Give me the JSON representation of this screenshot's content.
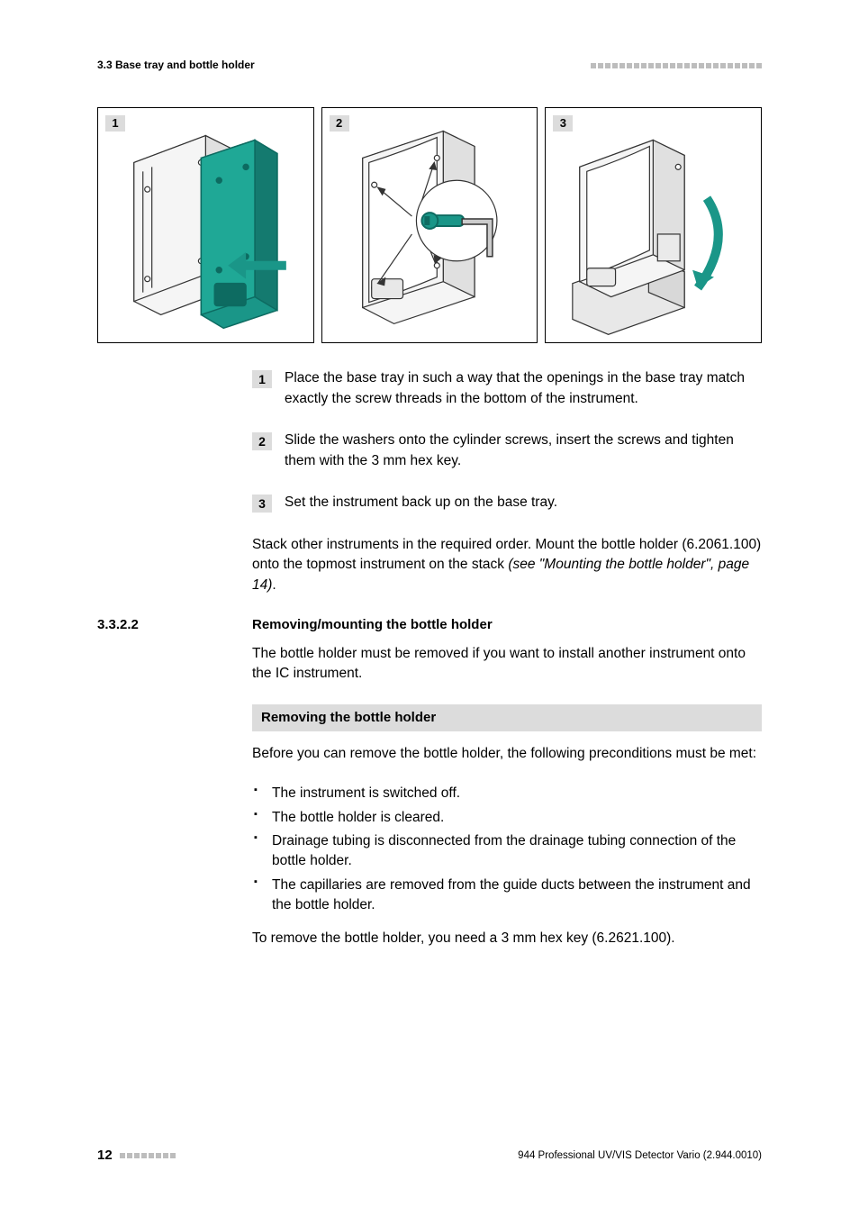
{
  "header": {
    "left": "3.3 Base tray and bottle holder",
    "squares_count": 24
  },
  "figures": {
    "labels": [
      "1",
      "2",
      "3"
    ],
    "colors": {
      "line": "#333333",
      "tray_fill": "#1a9688",
      "tray_stroke": "#0d6b61",
      "arrow_fill": "#1a9688",
      "device_light": "#f5f5f5",
      "device_mid": "#e0e0e0"
    }
  },
  "steps": [
    {
      "num": "1",
      "text": "Place the base tray in such a way that the openings in the base tray match exactly the screw threads in the bottom of the instrument."
    },
    {
      "num": "2",
      "text": "Slide the washers onto the cylinder screws, insert the screws and tighten them with the 3 mm hex key."
    },
    {
      "num": "3",
      "text": "Set the instrument back up on the base tray."
    }
  ],
  "paragraph_after_steps": {
    "text_before_italic": "Stack other instruments in the required order. Mount the bottle holder (6.2061.100) onto the topmost instrument on the stack ",
    "italic_text": "(see \"Mounting the bottle holder\", page 14)",
    "text_after_italic": "."
  },
  "section": {
    "number": "3.3.2.2",
    "title": "Removing/mounting the bottle holder",
    "intro": "The bottle holder must be removed if you want to install another instrument onto the IC instrument."
  },
  "subbox": {
    "title": "Removing the bottle holder",
    "pre_text": "Before you can remove the bottle holder, the following preconditions must be met:",
    "bullets": [
      "The instrument is switched off.",
      "The bottle holder is cleared.",
      "Drainage tubing is disconnected from the drainage tubing connection of the bottle holder.",
      "The capillaries are removed from the guide ducts between the instrument and the bottle holder."
    ],
    "post_text": "To remove the bottle holder, you need a 3 mm hex key (6.2621.100)."
  },
  "footer": {
    "page_number": "12",
    "squares_count": 8,
    "right": "944 Professional UV/VIS Detector Vario (2.944.0010)"
  }
}
